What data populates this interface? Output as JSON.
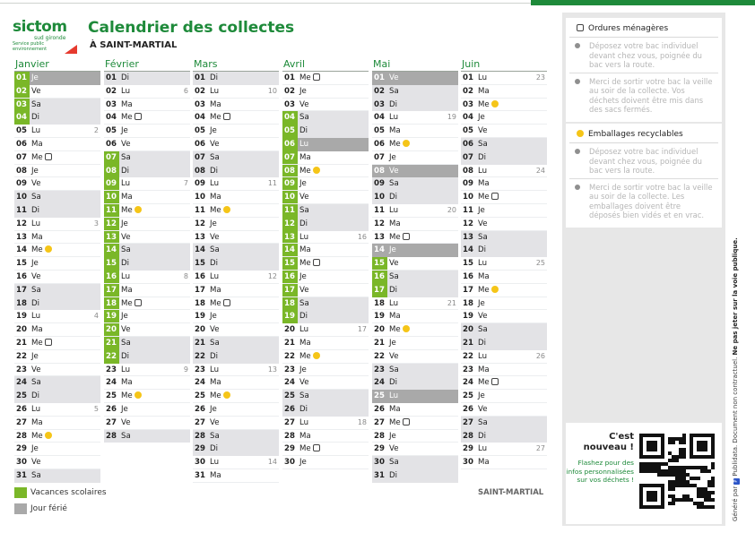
{
  "header": {
    "logo_word": "sictom",
    "logo_sub": "sud gironde",
    "logo_tagline": "Service public environnement",
    "title": "Calendrier des collectes",
    "location_line": "À SAINT-MARTIAL"
  },
  "colors": {
    "brand_green": "#1e8a3a",
    "vacation": "#7ab728",
    "holiday": "#a9a9a9",
    "weekend": "#e3e3e6",
    "recycling": "#f5c518"
  },
  "months": [
    {
      "name": "Janvier",
      "days": [
        {
          "n": "01",
          "d": "Je",
          "hol": true,
          "vac": true
        },
        {
          "n": "02",
          "d": "Ve",
          "vac": true
        },
        {
          "n": "03",
          "d": "Sa",
          "we": true,
          "vac": true
        },
        {
          "n": "04",
          "d": "Di",
          "we": true,
          "vac": true
        },
        {
          "n": "05",
          "d": "Lu",
          "wk": "2"
        },
        {
          "n": "06",
          "d": "Ma"
        },
        {
          "n": "07",
          "d": "Me",
          "ic": "bin"
        },
        {
          "n": "08",
          "d": "Je"
        },
        {
          "n": "09",
          "d": "Ve"
        },
        {
          "n": "10",
          "d": "Sa",
          "we": true
        },
        {
          "n": "11",
          "d": "Di",
          "we": true
        },
        {
          "n": "12",
          "d": "Lu",
          "wk": "3"
        },
        {
          "n": "13",
          "d": "Ma"
        },
        {
          "n": "14",
          "d": "Me",
          "ic": "rec"
        },
        {
          "n": "15",
          "d": "Je"
        },
        {
          "n": "16",
          "d": "Ve"
        },
        {
          "n": "17",
          "d": "Sa",
          "we": true
        },
        {
          "n": "18",
          "d": "Di",
          "we": true
        },
        {
          "n": "19",
          "d": "Lu",
          "wk": "4"
        },
        {
          "n": "20",
          "d": "Ma"
        },
        {
          "n": "21",
          "d": "Me",
          "ic": "bin"
        },
        {
          "n": "22",
          "d": "Je"
        },
        {
          "n": "23",
          "d": "Ve"
        },
        {
          "n": "24",
          "d": "Sa",
          "we": true
        },
        {
          "n": "25",
          "d": "Di",
          "we": true
        },
        {
          "n": "26",
          "d": "Lu",
          "wk": "5"
        },
        {
          "n": "27",
          "d": "Ma"
        },
        {
          "n": "28",
          "d": "Me",
          "ic": "rec"
        },
        {
          "n": "29",
          "d": "Je"
        },
        {
          "n": "30",
          "d": "Ve"
        },
        {
          "n": "31",
          "d": "Sa",
          "we": true
        }
      ]
    },
    {
      "name": "Février",
      "days": [
        {
          "n": "01",
          "d": "Di",
          "we": true
        },
        {
          "n": "02",
          "d": "Lu",
          "wk": "6"
        },
        {
          "n": "03",
          "d": "Ma"
        },
        {
          "n": "04",
          "d": "Me",
          "ic": "bin"
        },
        {
          "n": "05",
          "d": "Je"
        },
        {
          "n": "06",
          "d": "Ve"
        },
        {
          "n": "07",
          "d": "Sa",
          "we": true,
          "vac": true
        },
        {
          "n": "08",
          "d": "Di",
          "we": true,
          "vac": true
        },
        {
          "n": "09",
          "d": "Lu",
          "wk": "7",
          "vac": true
        },
        {
          "n": "10",
          "d": "Ma",
          "vac": true
        },
        {
          "n": "11",
          "d": "Me",
          "ic": "rec",
          "vac": true
        },
        {
          "n": "12",
          "d": "Je",
          "vac": true
        },
        {
          "n": "13",
          "d": "Ve",
          "vac": true
        },
        {
          "n": "14",
          "d": "Sa",
          "we": true,
          "vac": true
        },
        {
          "n": "15",
          "d": "Di",
          "we": true,
          "vac": true
        },
        {
          "n": "16",
          "d": "Lu",
          "wk": "8",
          "vac": true
        },
        {
          "n": "17",
          "d": "Ma",
          "vac": true
        },
        {
          "n": "18",
          "d": "Me",
          "ic": "bin",
          "vac": true
        },
        {
          "n": "19",
          "d": "Je",
          "vac": true
        },
        {
          "n": "20",
          "d": "Ve",
          "vac": true
        },
        {
          "n": "21",
          "d": "Sa",
          "we": true,
          "vac": true
        },
        {
          "n": "22",
          "d": "Di",
          "we": true,
          "vac": true
        },
        {
          "n": "23",
          "d": "Lu",
          "wk": "9"
        },
        {
          "n": "24",
          "d": "Ma"
        },
        {
          "n": "25",
          "d": "Me",
          "ic": "rec"
        },
        {
          "n": "26",
          "d": "Je"
        },
        {
          "n": "27",
          "d": "Ve"
        },
        {
          "n": "28",
          "d": "Sa",
          "we": true
        }
      ]
    },
    {
      "name": "Mars",
      "days": [
        {
          "n": "01",
          "d": "Di",
          "we": true
        },
        {
          "n": "02",
          "d": "Lu",
          "wk": "10"
        },
        {
          "n": "03",
          "d": "Ma"
        },
        {
          "n": "04",
          "d": "Me",
          "ic": "bin"
        },
        {
          "n": "05",
          "d": "Je"
        },
        {
          "n": "06",
          "d": "Ve"
        },
        {
          "n": "07",
          "d": "Sa",
          "we": true
        },
        {
          "n": "08",
          "d": "Di",
          "we": true
        },
        {
          "n": "09",
          "d": "Lu",
          "wk": "11"
        },
        {
          "n": "10",
          "d": "Ma"
        },
        {
          "n": "11",
          "d": "Me",
          "ic": "rec"
        },
        {
          "n": "12",
          "d": "Je"
        },
        {
          "n": "13",
          "d": "Ve"
        },
        {
          "n": "14",
          "d": "Sa",
          "we": true
        },
        {
          "n": "15",
          "d": "Di",
          "we": true
        },
        {
          "n": "16",
          "d": "Lu",
          "wk": "12"
        },
        {
          "n": "17",
          "d": "Ma"
        },
        {
          "n": "18",
          "d": "Me",
          "ic": "bin"
        },
        {
          "n": "19",
          "d": "Je"
        },
        {
          "n": "20",
          "d": "Ve"
        },
        {
          "n": "21",
          "d": "Sa",
          "we": true
        },
        {
          "n": "22",
          "d": "Di",
          "we": true
        },
        {
          "n": "23",
          "d": "Lu",
          "wk": "13"
        },
        {
          "n": "24",
          "d": "Ma"
        },
        {
          "n": "25",
          "d": "Me",
          "ic": "rec"
        },
        {
          "n": "26",
          "d": "Je"
        },
        {
          "n": "27",
          "d": "Ve"
        },
        {
          "n": "28",
          "d": "Sa",
          "we": true
        },
        {
          "n": "29",
          "d": "Di",
          "we": true
        },
        {
          "n": "30",
          "d": "Lu",
          "wk": "14"
        },
        {
          "n": "31",
          "d": "Ma"
        }
      ]
    },
    {
      "name": "Avril",
      "days": [
        {
          "n": "01",
          "d": "Me",
          "ic": "bin"
        },
        {
          "n": "02",
          "d": "Je"
        },
        {
          "n": "03",
          "d": "Ve"
        },
        {
          "n": "04",
          "d": "Sa",
          "we": true,
          "vac": true
        },
        {
          "n": "05",
          "d": "Di",
          "we": true,
          "vac": true
        },
        {
          "n": "06",
          "d": "Lu",
          "hol": true,
          "vac": true
        },
        {
          "n": "07",
          "d": "Ma",
          "vac": true
        },
        {
          "n": "08",
          "d": "Me",
          "ic": "rec",
          "vac": true
        },
        {
          "n": "09",
          "d": "Je",
          "vac": true
        },
        {
          "n": "10",
          "d": "Ve",
          "vac": true
        },
        {
          "n": "11",
          "d": "Sa",
          "we": true,
          "vac": true
        },
        {
          "n": "12",
          "d": "Di",
          "we": true,
          "vac": true
        },
        {
          "n": "13",
          "d": "Lu",
          "wk": "16",
          "vac": true
        },
        {
          "n": "14",
          "d": "Ma",
          "vac": true
        },
        {
          "n": "15",
          "d": "Me",
          "ic": "bin",
          "vac": true
        },
        {
          "n": "16",
          "d": "Je",
          "vac": true
        },
        {
          "n": "17",
          "d": "Ve",
          "vac": true
        },
        {
          "n": "18",
          "d": "Sa",
          "we": true,
          "vac": true
        },
        {
          "n": "19",
          "d": "Di",
          "we": true,
          "vac": true
        },
        {
          "n": "20",
          "d": "Lu",
          "wk": "17"
        },
        {
          "n": "21",
          "d": "Ma"
        },
        {
          "n": "22",
          "d": "Me",
          "ic": "rec"
        },
        {
          "n": "23",
          "d": "Je"
        },
        {
          "n": "24",
          "d": "Ve"
        },
        {
          "n": "25",
          "d": "Sa",
          "we": true
        },
        {
          "n": "26",
          "d": "Di",
          "we": true
        },
        {
          "n": "27",
          "d": "Lu",
          "wk": "18"
        },
        {
          "n": "28",
          "d": "Ma"
        },
        {
          "n": "29",
          "d": "Me",
          "ic": "bin"
        },
        {
          "n": "30",
          "d": "Je"
        }
      ]
    },
    {
      "name": "Mai",
      "days": [
        {
          "n": "01",
          "d": "Ve",
          "hol": true
        },
        {
          "n": "02",
          "d": "Sa",
          "we": true
        },
        {
          "n": "03",
          "d": "Di",
          "we": true
        },
        {
          "n": "04",
          "d": "Lu",
          "wk": "19"
        },
        {
          "n": "05",
          "d": "Ma"
        },
        {
          "n": "06",
          "d": "Me",
          "ic": "rec"
        },
        {
          "n": "07",
          "d": "Je"
        },
        {
          "n": "08",
          "d": "Ve",
          "hol": true
        },
        {
          "n": "09",
          "d": "Sa",
          "we": true
        },
        {
          "n": "10",
          "d": "Di",
          "we": true
        },
        {
          "n": "11",
          "d": "Lu",
          "wk": "20"
        },
        {
          "n": "12",
          "d": "Ma"
        },
        {
          "n": "13",
          "d": "Me",
          "ic": "bin"
        },
        {
          "n": "14",
          "d": "Je",
          "hol": true
        },
        {
          "n": "15",
          "d": "Ve",
          "vac": true
        },
        {
          "n": "16",
          "d": "Sa",
          "we": true,
          "vac": true
        },
        {
          "n": "17",
          "d": "Di",
          "we": true,
          "vac": true
        },
        {
          "n": "18",
          "d": "Lu",
          "wk": "21"
        },
        {
          "n": "19",
          "d": "Ma"
        },
        {
          "n": "20",
          "d": "Me",
          "ic": "rec"
        },
        {
          "n": "21",
          "d": "Je"
        },
        {
          "n": "22",
          "d": "Ve"
        },
        {
          "n": "23",
          "d": "Sa",
          "we": true
        },
        {
          "n": "24",
          "d": "Di",
          "we": true
        },
        {
          "n": "25",
          "d": "Lu",
          "hol": true
        },
        {
          "n": "26",
          "d": "Ma"
        },
        {
          "n": "27",
          "d": "Me",
          "ic": "bin"
        },
        {
          "n": "28",
          "d": "Je"
        },
        {
          "n": "29",
          "d": "Ve"
        },
        {
          "n": "30",
          "d": "Sa",
          "we": true
        },
        {
          "n": "31",
          "d": "Di",
          "we": true
        }
      ]
    },
    {
      "name": "Juin",
      "days": [
        {
          "n": "01",
          "d": "Lu",
          "wk": "23"
        },
        {
          "n": "02",
          "d": "Ma"
        },
        {
          "n": "03",
          "d": "Me",
          "ic": "rec"
        },
        {
          "n": "04",
          "d": "Je"
        },
        {
          "n": "05",
          "d": "Ve"
        },
        {
          "n": "06",
          "d": "Sa",
          "we": true
        },
        {
          "n": "07",
          "d": "Di",
          "we": true
        },
        {
          "n": "08",
          "d": "Lu",
          "wk": "24"
        },
        {
          "n": "09",
          "d": "Ma"
        },
        {
          "n": "10",
          "d": "Me",
          "ic": "bin"
        },
        {
          "n": "11",
          "d": "Je"
        },
        {
          "n": "12",
          "d": "Ve"
        },
        {
          "n": "13",
          "d": "Sa",
          "we": true
        },
        {
          "n": "14",
          "d": "Di",
          "we": true
        },
        {
          "n": "15",
          "d": "Lu",
          "wk": "25"
        },
        {
          "n": "16",
          "d": "Ma"
        },
        {
          "n": "17",
          "d": "Me",
          "ic": "rec"
        },
        {
          "n": "18",
          "d": "Je"
        },
        {
          "n": "19",
          "d": "Ve"
        },
        {
          "n": "20",
          "d": "Sa",
          "we": true
        },
        {
          "n": "21",
          "d": "Di",
          "we": true
        },
        {
          "n": "22",
          "d": "Lu",
          "wk": "26"
        },
        {
          "n": "23",
          "d": "Ma"
        },
        {
          "n": "24",
          "d": "Me",
          "ic": "bin"
        },
        {
          "n": "25",
          "d": "Je"
        },
        {
          "n": "26",
          "d": "Ve"
        },
        {
          "n": "27",
          "d": "Sa",
          "we": true
        },
        {
          "n": "28",
          "d": "Di",
          "we": true
        },
        {
          "n": "29",
          "d": "Lu",
          "wk": "27"
        },
        {
          "n": "30",
          "d": "Ma"
        }
      ]
    }
  ],
  "legend": {
    "vacation_label": "Vacances scolaires",
    "holiday_label": "Jour férié"
  },
  "footer_location": "SAINT-MARTIAL",
  "sidebar": {
    "ordures": {
      "title": "Ordures ménagères",
      "p1": "Déposez votre bac individuel devant chez vous, poignée du bac vers la route.",
      "p2": "Merci de sortir votre bac la veille au soir de la collecte. Vos déchets doivent être mis dans des sacs fermés."
    },
    "emballages": {
      "title": "Emballages recyclables",
      "p1": "Déposez votre bac individuel devant chez vous, poignée du bac vers la route.",
      "p2": "Merci de sortir votre bac la veille au soir de la collecte. Les emballages doivent être déposés bien vidés et en vrac."
    },
    "qr": {
      "headline": "C'est nouveau !",
      "text": "Flashez pour des infos personnalisées sur vos déchets !"
    }
  },
  "vertical": {
    "generated": "Généré par",
    "brand": "Publidata",
    "note": ". Document non contractuel.",
    "warning": "Ne pas jeter sur la voie publique."
  }
}
